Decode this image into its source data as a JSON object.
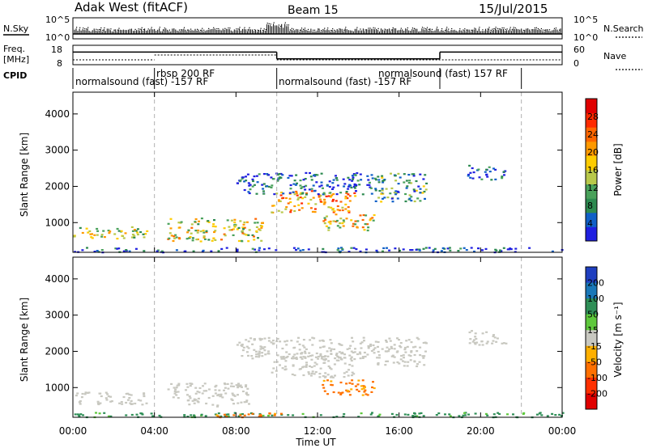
{
  "header": {
    "site": "Adak West (fitACF)",
    "beam": "Beam 15",
    "date": "15/Jul/2015"
  },
  "status_panels": {
    "nsky_label": "N.Sky",
    "nsky_ticks": [
      "10^5",
      "10^0"
    ],
    "nsearch_label": "N.Search",
    "nsearch_ticks": [
      "10^5",
      "10^0"
    ],
    "freq_label": "Freq.",
    "freq_unit": "[MHz]",
    "freq_ticks": [
      "18",
      "8"
    ],
    "nave_label": "Nave",
    "nave_ticks": [
      "60",
      "0"
    ],
    "cpid_label": "CPID",
    "cpid_segments": [
      {
        "label": "normalsound (fast) -157 RF",
        "start": 0,
        "end": 4
      },
      {
        "label": "rbsp 200 RF",
        "start": 4,
        "end": 10
      },
      {
        "label": "normalsound (fast) -157 RF",
        "start": 10,
        "end": 18
      },
      {
        "label": "normalsound (fast) 157 RF",
        "start": 18,
        "end": 22
      }
    ],
    "freq_segments": [
      {
        "start": 0,
        "end": 10,
        "value": 14.5
      },
      {
        "start": 10,
        "end": 18,
        "value": 11
      },
      {
        "start": 18,
        "end": 24,
        "value": 14.5
      }
    ]
  },
  "chart_data": [
    {
      "type": "heatmap",
      "title": "Power",
      "xlabel": "Time UT",
      "ylabel": "Slant Range [km]",
      "x_ticks": [
        "00:00",
        "04:00",
        "08:00",
        "12:00",
        "16:00",
        "20:00",
        "00:00"
      ],
      "xlim": [
        0,
        24
      ],
      "y_ticks": [
        1000,
        2000,
        3000,
        4000
      ],
      "ylim": [
        180,
        4600
      ],
      "colorbar": {
        "label": "Power [dB]",
        "ticks": [
          4,
          8,
          12,
          16,
          20,
          24,
          28
        ],
        "range": [
          0,
          32
        ],
        "colors": [
          "#1f1fe0",
          "#1060c8",
          "#2d8a50",
          "#49a15a",
          "#b8c84a",
          "#ffcc00",
          "#ff9900",
          "#ff6600",
          "#ff2a00",
          "#e00000"
        ]
      },
      "regions": [
        {
          "t0": 0.0,
          "t1": 3.6,
          "r0": 550,
          "r1": 900,
          "level": 0.45
        },
        {
          "t0": 4.6,
          "t1": 9.3,
          "r0": 500,
          "r1": 1150,
          "level": 0.5
        },
        {
          "t0": 9.7,
          "t1": 13.8,
          "r0": 1300,
          "r1": 1900,
          "level": 0.65
        },
        {
          "t0": 12.2,
          "t1": 14.8,
          "r0": 800,
          "r1": 1250,
          "level": 0.55
        },
        {
          "t0": 8.0,
          "t1": 15.0,
          "r0": 1800,
          "r1": 2400,
          "level": 0.15
        },
        {
          "t0": 14.8,
          "t1": 17.3,
          "r0": 1600,
          "r1": 2400,
          "level": 0.3
        },
        {
          "t0": 19.3,
          "t1": 21.2,
          "r0": 2200,
          "r1": 2600,
          "level": 0.15
        },
        {
          "t0": 0.0,
          "t1": 24.0,
          "r0": 200,
          "r1": 330,
          "level": 0.1
        }
      ]
    },
    {
      "type": "heatmap",
      "title": "Velocity",
      "xlabel": "Time UT",
      "ylabel": "Slant Range [km]",
      "x_ticks": [
        "00:00",
        "04:00",
        "08:00",
        "12:00",
        "16:00",
        "20:00",
        "00:00"
      ],
      "xlim": [
        0,
        24
      ],
      "y_ticks": [
        1000,
        2000,
        3000,
        4000
      ],
      "ylim": [
        180,
        4600
      ],
      "colorbar": {
        "label": "Velocity [m s⁻¹]",
        "ticks": [
          "200",
          "100",
          "50",
          "15",
          "-15",
          "-50",
          "-100",
          "-200"
        ],
        "colors": [
          "#1f3fc0",
          "#1a78b8",
          "#2f8f57",
          "#5ec83c",
          "#c8c8c0",
          "#ffb000",
          "#ff7000",
          "#ff3000",
          "#e00000"
        ]
      },
      "regions": [
        {
          "t0": 0.0,
          "t1": 3.6,
          "r0": 550,
          "r1": 900,
          "vel": 0
        },
        {
          "t0": 4.6,
          "t1": 8.6,
          "r0": 500,
          "r1": 1150,
          "vel": 0
        },
        {
          "t0": 9.7,
          "t1": 13.8,
          "r0": 1300,
          "r1": 1900,
          "vel": 0
        },
        {
          "t0": 12.2,
          "t1": 14.8,
          "r0": 800,
          "r1": 1250,
          "vel": -60
        },
        {
          "t0": 8.0,
          "t1": 15.0,
          "r0": 1800,
          "r1": 2400,
          "vel": 0
        },
        {
          "t0": 14.8,
          "t1": 17.3,
          "r0": 1600,
          "r1": 2400,
          "vel": 0
        },
        {
          "t0": 19.3,
          "t1": 21.2,
          "r0": 2200,
          "r1": 2600,
          "vel": 0
        },
        {
          "t0": 0.0,
          "t1": 24.0,
          "r0": 200,
          "r1": 330,
          "vel": 40
        },
        {
          "t0": 7.0,
          "t1": 11.0,
          "r0": 200,
          "r1": 320,
          "vel": -60
        }
      ]
    }
  ]
}
